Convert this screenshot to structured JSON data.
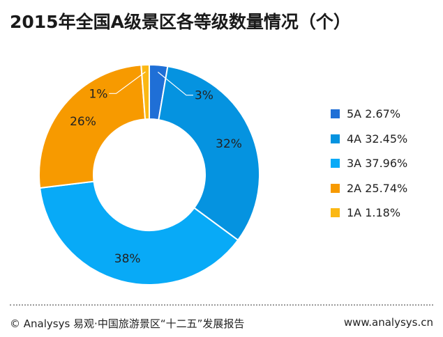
{
  "title": "2015年全国A级景区各等级数量情况（个）",
  "chart_data": {
    "type": "pie",
    "donut": true,
    "title": "2015年全国A级景区各等级数量情况（个）",
    "categories": [
      "5A",
      "4A",
      "3A",
      "2A",
      "1A"
    ],
    "values": [
      2.67,
      32.45,
      37.96,
      25.74,
      1.18
    ],
    "data_labels": [
      "3%",
      "32%",
      "38%",
      "26%",
      "1%"
    ],
    "legend_labels": [
      "5A 2.67%",
      "4A 32.45%",
      "3A 37.96%",
      "2A 25.74%",
      "1A 1.18%"
    ],
    "colors": [
      "#1f6fd6",
      "#0593e0",
      "#08aaf7",
      "#f79a00",
      "#fbb814"
    ],
    "legend_position": "right"
  },
  "footer": {
    "source": "© Analysys 易观·中国旅游景区“十二五”发展报告",
    "url": "www.analysys.cn"
  }
}
